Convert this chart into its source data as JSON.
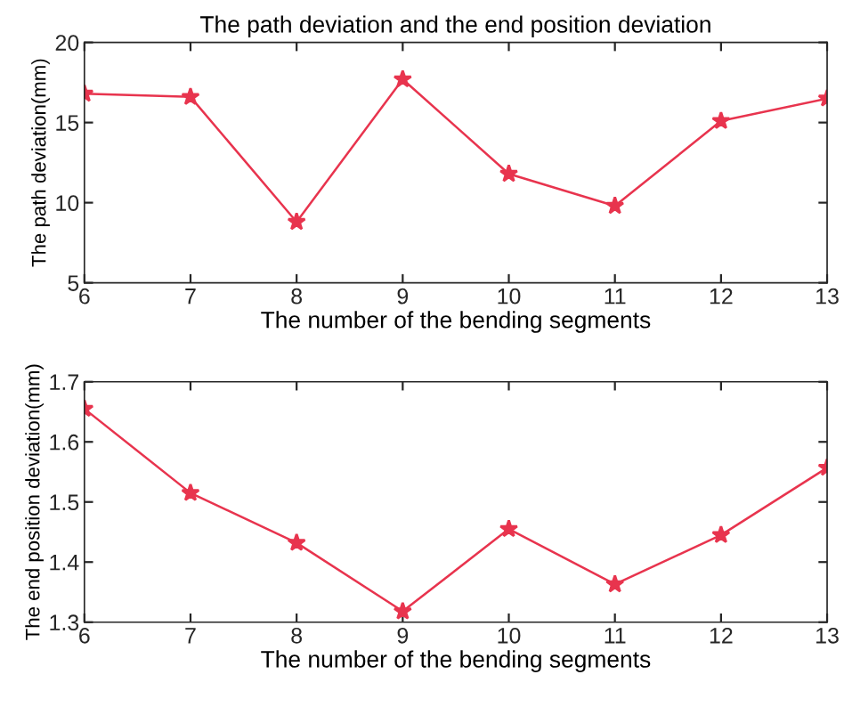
{
  "chart_data": [
    {
      "type": "line",
      "title": "The path deviation and the end position deviation",
      "xlabel": "The number of the bending segments",
      "ylabel": "The path deviation(mm)",
      "x": [
        6,
        7,
        8,
        9,
        10,
        11,
        12,
        13
      ],
      "series": [
        {
          "color": "#e8344e",
          "values": [
            16.8,
            16.6,
            8.8,
            17.7,
            11.8,
            9.8,
            15.1,
            16.5
          ]
        }
      ],
      "xlim": [
        6,
        13
      ],
      "xticks": [
        6,
        7,
        8,
        9,
        10,
        11,
        12,
        13
      ],
      "ylim": [
        5,
        20
      ],
      "yticks": [
        5,
        10,
        15,
        20
      ],
      "marker": "star",
      "grid": false,
      "legend": false
    },
    {
      "type": "line",
      "xlabel": "The number of the bending segments",
      "ylabel": "The end position deviation(mm)",
      "x": [
        6,
        7,
        8,
        9,
        10,
        11,
        12,
        13
      ],
      "series": [
        {
          "color": "#e8344e",
          "values": [
            1.655,
            1.515,
            1.432,
            1.318,
            1.455,
            1.363,
            1.445,
            1.557
          ]
        }
      ],
      "xlim": [
        6,
        13
      ],
      "xticks": [
        6,
        7,
        8,
        9,
        10,
        11,
        12,
        13
      ],
      "ylim": [
        1.3,
        1.7
      ],
      "yticks": [
        1.3,
        1.4,
        1.5,
        1.6,
        1.7
      ],
      "marker": "star",
      "grid": false,
      "legend": false
    }
  ]
}
